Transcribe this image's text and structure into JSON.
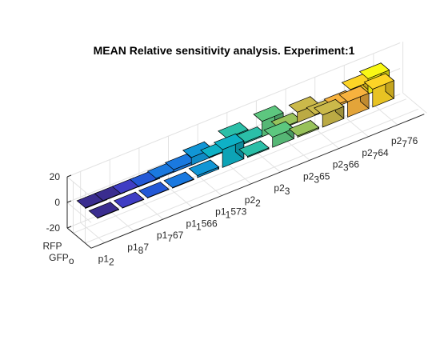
{
  "chart_data": {
    "type": "bar3d",
    "title": "MEAN Relative sensitivity analysis. Experiment:1",
    "zlim": [
      -20,
      20
    ],
    "z_ticks": [
      "20",
      "0",
      "-20"
    ],
    "rows": [
      {
        "base": "RFP",
        "sub": ""
      },
      {
        "base": "GFP",
        "sub": "o"
      }
    ],
    "columns": [
      {
        "base": "p1",
        "sub": "2"
      },
      {
        "base": "p1",
        "sub": "8"
      },
      {
        "base": "p1",
        "sub": "7"
      },
      {
        "base": "p1",
        "sub": "1"
      },
      {
        "base": "p2",
        "sub": ""
      },
      {
        "base": "p2",
        "sub": "3"
      },
      {
        "base": "p2",
        "sub": "3"
      },
      {
        "base": "p2",
        "sub": "7"
      },
      {
        "base": "p2",
        "sub": "7"
      }
    ],
    "tick_labels": [
      {
        "base": "p1",
        "sub": "2",
        "rest": ""
      },
      {
        "base": "p1",
        "sub": "8",
        "rest": "7"
      },
      {
        "base": "p1",
        "sub": "7",
        "rest": "67"
      },
      {
        "base": "p1",
        "sub": "1",
        "rest": "566"
      },
      {
        "base": "p1",
        "sub": "1",
        "rest": "573"
      },
      {
        "base": "p2",
        "sub": "2",
        "rest": ""
      },
      {
        "base": "p2",
        "sub": "3",
        "rest": ""
      },
      {
        "base": "p2",
        "sub": "3",
        "rest": "65"
      },
      {
        "base": "p2",
        "sub": "3",
        "rest": "66"
      },
      {
        "base": "p2",
        "sub": "7",
        "rest": "64"
      },
      {
        "base": "p2",
        "sub": "7",
        "rest": "76"
      }
    ],
    "series": [
      {
        "name": "RFP",
        "values": [
          -0.5,
          -0.3,
          -0.3,
          -0.4,
          0.8,
          2.0,
          6.0,
          0.6,
          10.0,
          1.0,
          12.0,
          0.7,
          8.0,
          0.5,
          1.5,
          9.0,
          12.0
        ]
      },
      {
        "name": "GFP",
        "values": [
          -0.4,
          -0.3,
          -0.3,
          -0.4,
          1.5,
          14.0,
          0.8,
          8.0,
          1.0,
          9.5,
          12.0,
          14.0
        ]
      }
    ],
    "bar_colors": [
      "#3a2d8f",
      "#3f3dc4",
      "#2358d6",
      "#1a79e0",
      "#1196d6",
      "#0eb1c6",
      "#2bbfa8",
      "#5dc77f",
      "#98c25b",
      "#cbb94a",
      "#f7b23e",
      "#fcd426",
      "#f9f815"
    ]
  }
}
